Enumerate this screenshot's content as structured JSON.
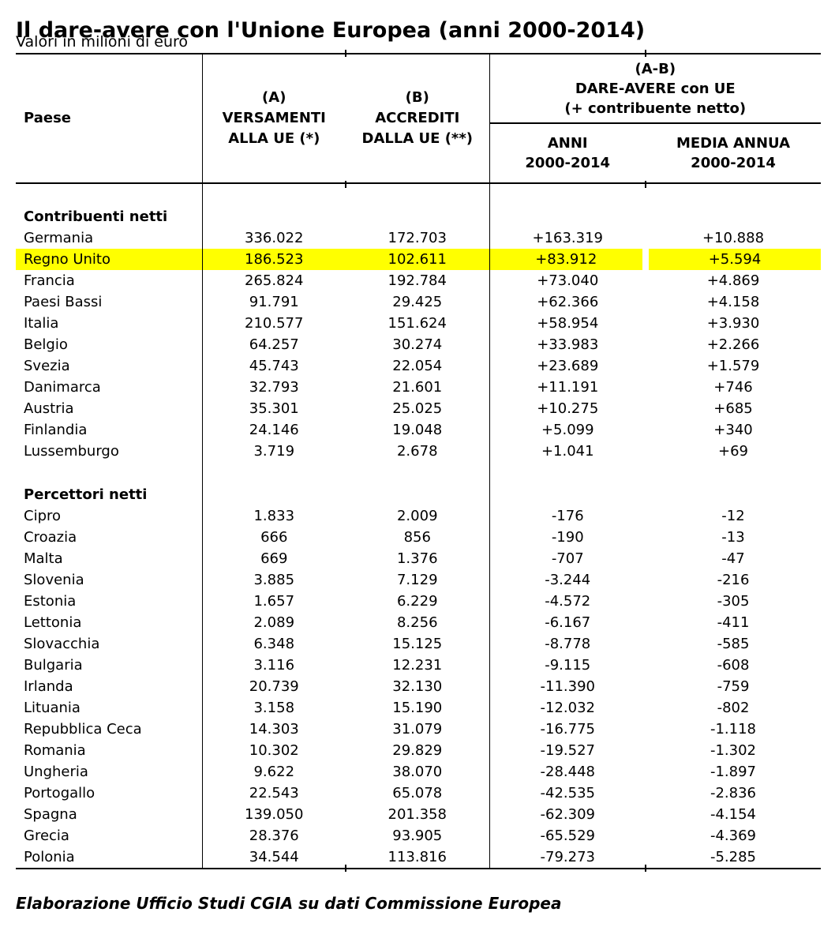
{
  "page": {
    "title": "Il dare-avere con l'Unione Europea (anni 2000-2014)",
    "subtitle": "Valori in milioni di euro",
    "footer": "Elaborazione Ufficio Studi CGIA su dati Commissione Europea"
  },
  "table": {
    "highlight_color": "#ffff00",
    "header": {
      "country": "Paese",
      "col_a": "(A)\nVERSAMENTI\nALLA UE (*)",
      "col_b": "(B)\nACCREDITI\nDALLA UE (**)",
      "group_ab": "(A-B)\nDARE-AVERE con UE\n(+ contribuente netto)",
      "sub_years": "ANNI\n2000-2014",
      "sub_avg": "MEDIA ANNUA\n2000-2014"
    },
    "sections": [
      {
        "label": "Contribuenti netti",
        "rows": [
          {
            "country": "Germania",
            "a": "336.022",
            "b": "172.703",
            "ab": "+163.319",
            "avg": "+10.888",
            "highlight": false
          },
          {
            "country": "Regno Unito",
            "a": "186.523",
            "b": "102.611",
            "ab": "+83.912",
            "avg": "+5.594",
            "highlight": true
          },
          {
            "country": "Francia",
            "a": "265.824",
            "b": "192.784",
            "ab": "+73.040",
            "avg": "+4.869",
            "highlight": false
          },
          {
            "country": "Paesi Bassi",
            "a": "91.791",
            "b": "29.425",
            "ab": "+62.366",
            "avg": "+4.158",
            "highlight": false
          },
          {
            "country": "Italia",
            "a": "210.577",
            "b": "151.624",
            "ab": "+58.954",
            "avg": "+3.930",
            "highlight": false
          },
          {
            "country": "Belgio",
            "a": "64.257",
            "b": "30.274",
            "ab": "+33.983",
            "avg": "+2.266",
            "highlight": false
          },
          {
            "country": "Svezia",
            "a": "45.743",
            "b": "22.054",
            "ab": "+23.689",
            "avg": "+1.579",
            "highlight": false
          },
          {
            "country": "Danimarca",
            "a": "32.793",
            "b": "21.601",
            "ab": "+11.191",
            "avg": "+746",
            "highlight": false
          },
          {
            "country": "Austria",
            "a": "35.301",
            "b": "25.025",
            "ab": "+10.275",
            "avg": "+685",
            "highlight": false
          },
          {
            "country": "Finlandia",
            "a": "24.146",
            "b": "19.048",
            "ab": "+5.099",
            "avg": "+340",
            "highlight": false
          },
          {
            "country": "Lussemburgo",
            "a": "3.719",
            "b": "2.678",
            "ab": "+1.041",
            "avg": "+69",
            "highlight": false
          }
        ]
      },
      {
        "label": "Percettori netti",
        "rows": [
          {
            "country": "Cipro",
            "a": "1.833",
            "b": "2.009",
            "ab": "-176",
            "avg": "-12",
            "highlight": false
          },
          {
            "country": "Croazia",
            "a": "666",
            "b": "856",
            "ab": "-190",
            "avg": "-13",
            "highlight": false
          },
          {
            "country": "Malta",
            "a": "669",
            "b": "1.376",
            "ab": "-707",
            "avg": "-47",
            "highlight": false
          },
          {
            "country": "Slovenia",
            "a": "3.885",
            "b": "7.129",
            "ab": "-3.244",
            "avg": "-216",
            "highlight": false
          },
          {
            "country": "Estonia",
            "a": "1.657",
            "b": "6.229",
            "ab": "-4.572",
            "avg": "-305",
            "highlight": false
          },
          {
            "country": "Lettonia",
            "a": "2.089",
            "b": "8.256",
            "ab": "-6.167",
            "avg": "-411",
            "highlight": false
          },
          {
            "country": "Slovacchia",
            "a": "6.348",
            "b": "15.125",
            "ab": "-8.778",
            "avg": "-585",
            "highlight": false
          },
          {
            "country": "Bulgaria",
            "a": "3.116",
            "b": "12.231",
            "ab": "-9.115",
            "avg": "-608",
            "highlight": false
          },
          {
            "country": "Irlanda",
            "a": "20.739",
            "b": "32.130",
            "ab": "-11.390",
            "avg": "-759",
            "highlight": false
          },
          {
            "country": "Lituania",
            "a": "3.158",
            "b": "15.190",
            "ab": "-12.032",
            "avg": "-802",
            "highlight": false
          },
          {
            "country": "Repubblica Ceca",
            "a": "14.303",
            "b": "31.079",
            "ab": "-16.775",
            "avg": "-1.118",
            "highlight": false
          },
          {
            "country": "Romania",
            "a": "10.302",
            "b": "29.829",
            "ab": "-19.527",
            "avg": "-1.302",
            "highlight": false
          },
          {
            "country": "Ungheria",
            "a": "9.622",
            "b": "38.070",
            "ab": "-28.448",
            "avg": "-1.897",
            "highlight": false
          },
          {
            "country": "Portogallo",
            "a": "22.543",
            "b": "65.078",
            "ab": "-42.535",
            "avg": "-2.836",
            "highlight": false
          },
          {
            "country": "Spagna",
            "a": "139.050",
            "b": "201.358",
            "ab": "-62.309",
            "avg": "-4.154",
            "highlight": false
          },
          {
            "country": "Grecia",
            "a": "28.376",
            "b": "93.905",
            "ab": "-65.529",
            "avg": "-4.369",
            "highlight": false
          },
          {
            "country": "Polonia",
            "a": "34.544",
            "b": "113.816",
            "ab": "-79.273",
            "avg": "-5.285",
            "highlight": false
          }
        ]
      }
    ]
  }
}
